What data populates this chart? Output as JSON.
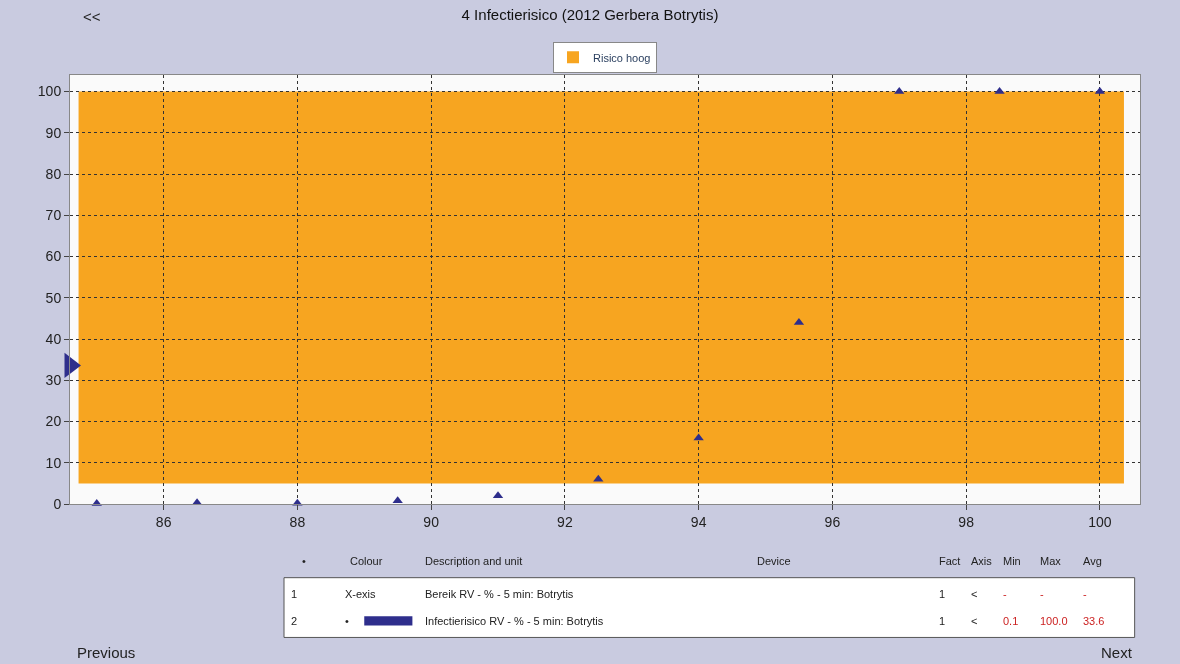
{
  "chart_data": {
    "type": "scatter",
    "title": "4 Infectierisico (2012 Gerbera Botrytis)",
    "x": [
      85,
      86.5,
      88,
      89.5,
      91,
      92.5,
      94,
      95.5,
      97,
      98.5,
      100
    ],
    "series": [
      {
        "color": "#2e2e8c",
        "values": [
          0.1,
          0.3,
          0.2,
          0.8,
          2,
          6,
          16,
          44,
          100,
          100,
          100
        ]
      },
      {
        "color": "#2e2e8c",
        "x": [
          84.6
        ],
        "values": [
          33.6
        ],
        "marker": "triangle-right"
      }
    ],
    "marker": "triangle",
    "xlim": [
      84.6,
      100.6
    ],
    "xticks": [
      86,
      88,
      90,
      92,
      94,
      96,
      98,
      100
    ],
    "ylim": [
      0,
      104
    ],
    "yticks": [
      0,
      10,
      20,
      30,
      40,
      50,
      60,
      70,
      80,
      90,
      100
    ],
    "grid": true,
    "legend": "top",
    "bands": [
      {
        "axis": "y",
        "from": 5,
        "to": 100,
        "label": "Risico hoog",
        "color": "#f7a520"
      }
    ],
    "annotations": [
      "<<",
      "Previous",
      "Next",
      "•",
      "Colour",
      "Description and unit",
      "Device",
      "Fact",
      "Axis",
      "Min",
      "Max",
      "Avg",
      "1",
      "X-exis",
      "Bereik RV - % - 5 min: Botrytis",
      "1",
      "<",
      "-",
      "-",
      "-",
      "2",
      "•",
      "Infectierisico RV - % - 5 min: Botrytis",
      "1",
      "<",
      "0.1",
      "100.0",
      "33.6"
    ]
  }
}
